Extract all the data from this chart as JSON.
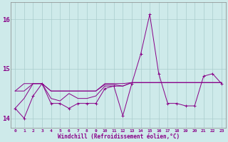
{
  "xlabel": "Windchill (Refroidissement éolien,°C)",
  "background_color": "#ceeaea",
  "grid_color": "#aacccc",
  "line_color": "#880088",
  "hours": [
    0,
    1,
    2,
    3,
    4,
    5,
    6,
    7,
    8,
    9,
    10,
    11,
    12,
    13,
    14,
    15,
    16,
    17,
    18,
    19,
    20,
    21,
    22,
    23
  ],
  "temp_line1": [
    14.2,
    14.0,
    14.45,
    14.7,
    14.3,
    14.3,
    14.2,
    14.3,
    14.3,
    14.3,
    14.6,
    14.65,
    14.05,
    14.7,
    15.3,
    16.1,
    14.9,
    14.3,
    14.3,
    14.25,
    14.25,
    14.85,
    14.9,
    14.7
  ],
  "temp_line2": [
    14.55,
    14.55,
    14.7,
    14.7,
    14.55,
    14.55,
    14.55,
    14.55,
    14.55,
    14.55,
    14.7,
    14.7,
    14.7,
    14.72,
    14.72,
    14.72,
    14.72,
    14.72,
    14.72,
    14.72,
    14.72,
    14.72,
    14.72,
    14.72
  ],
  "temp_line3": [
    14.55,
    14.7,
    14.7,
    14.7,
    14.55,
    14.55,
    14.55,
    14.55,
    14.55,
    14.55,
    14.68,
    14.68,
    14.65,
    14.72,
    14.72,
    14.72,
    14.72,
    14.72,
    14.72,
    14.72,
    14.72,
    14.72,
    14.72,
    14.72
  ],
  "temp_line4": [
    14.2,
    14.4,
    14.7,
    14.7,
    14.4,
    14.35,
    14.5,
    14.4,
    14.4,
    14.45,
    14.65,
    14.65,
    14.65,
    14.72,
    14.72,
    14.72,
    14.72,
    14.72,
    14.72,
    14.72,
    14.72,
    14.72,
    14.72,
    14.72
  ],
  "ylim": [
    13.8,
    16.35
  ],
  "yticks": [
    14,
    15,
    16
  ],
  "xlim": [
    -0.5,
    23.5
  ],
  "figsize": [
    3.2,
    2.0
  ],
  "dpi": 100
}
